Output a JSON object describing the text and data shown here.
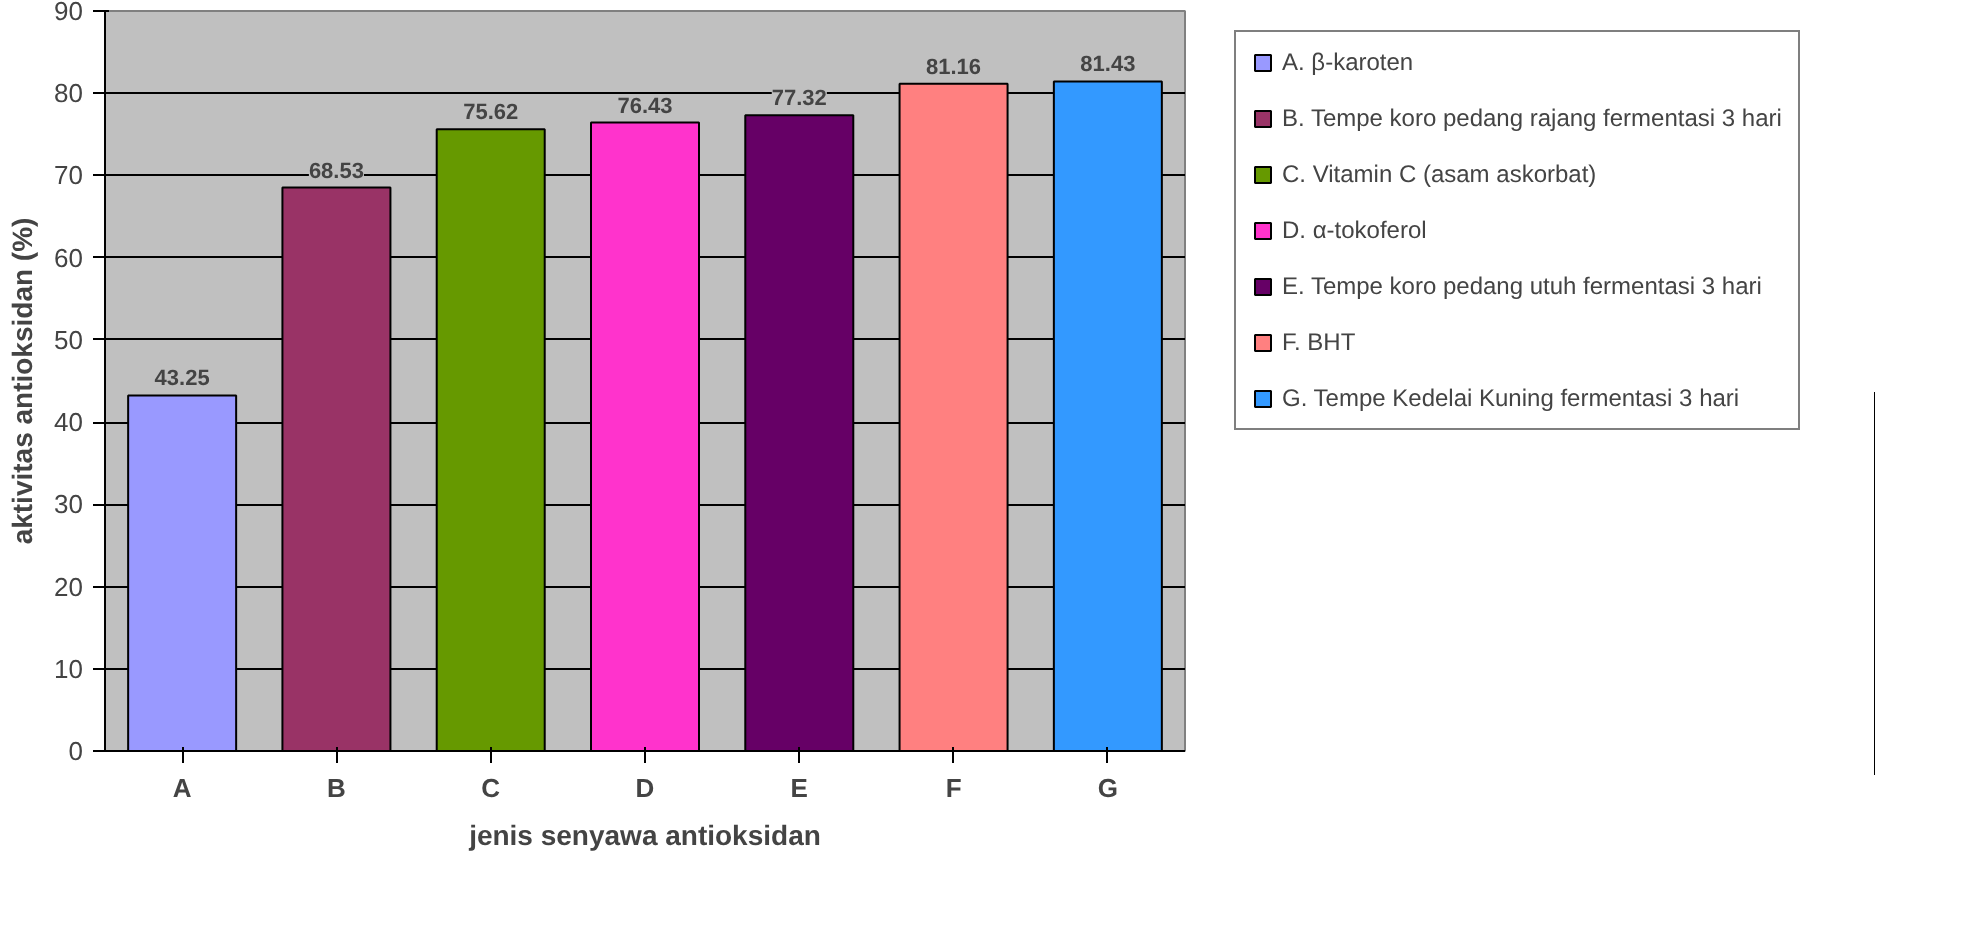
{
  "chart_data": {
    "type": "bar",
    "xlabel": "jenis senyawa antioksidan",
    "ylabel": "aktivitas antioksidan (%)",
    "categories": [
      "A",
      "B",
      "C",
      "D",
      "E",
      "F",
      "G"
    ],
    "series": [
      {
        "name": "A. β-karoten",
        "color": "#9999ff",
        "values": [
          43.25,
          null,
          null,
          null,
          null,
          null,
          null
        ]
      },
      {
        "name": "B. Tempe koro pedang rajang fermentasi 3 hari",
        "color": "#993366",
        "values": [
          null,
          68.53,
          null,
          null,
          null,
          null,
          null
        ]
      },
      {
        "name": "C. Vitamin C (asam askorbat)",
        "color": "#669900",
        "values": [
          null,
          null,
          75.62,
          null,
          null,
          null,
          null
        ]
      },
      {
        "name": "D. α-tokoferol",
        "color": "#ff33cc",
        "values": [
          null,
          null,
          null,
          76.43,
          null,
          null,
          null
        ]
      },
      {
        "name": "E. Tempe koro pedang utuh fermentasi 3 hari",
        "color": "#660066",
        "values": [
          null,
          null,
          null,
          null,
          77.32,
          null,
          null
        ]
      },
      {
        "name": "F. BHT",
        "color": "#ff8080",
        "values": [
          null,
          null,
          null,
          null,
          null,
          81.16,
          null
        ]
      },
      {
        "name": "G. Tempe Kedelai Kuning fermentasi 3 hari",
        "color": "#3399ff",
        "values": [
          null,
          null,
          null,
          null,
          null,
          null,
          81.43
        ]
      }
    ],
    "ylim": [
      0,
      90
    ],
    "yticks": [
      0,
      10,
      20,
      30,
      40,
      50,
      60,
      70,
      80,
      90
    ],
    "grid": "y",
    "legend": "right",
    "data_labels": true
  }
}
